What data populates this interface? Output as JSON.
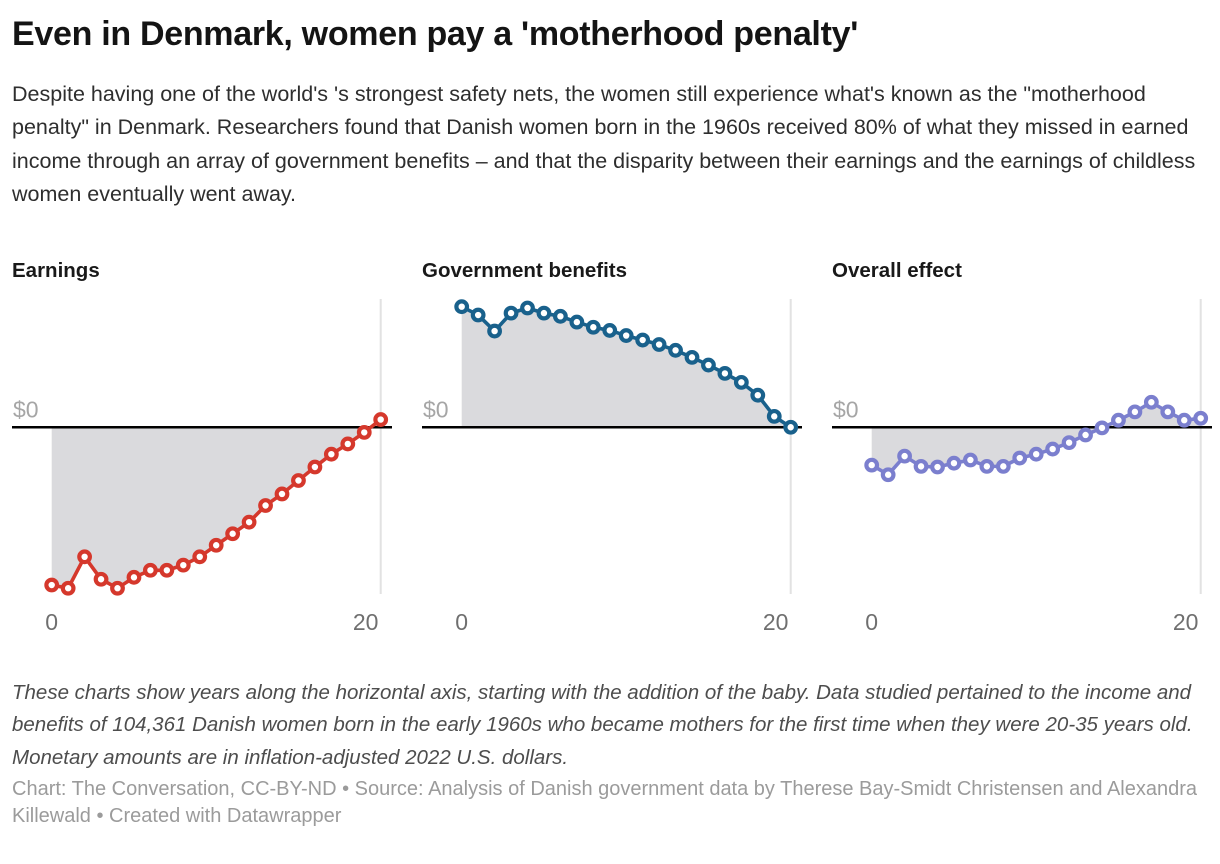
{
  "header": {
    "title": "Even in Denmark, women pay a 'motherhood penalty'",
    "description": "Despite having one of the world's 's strongest safety nets, the women still experience what's known as the \"motherhood penalty\" in Denmark. Researchers found that Danish women born in the 1960s received 80% of what they missed in earned income through an array of government benefits – and that the disparity between their earnings and the earnings of childless women eventually went away."
  },
  "axis": {
    "zero_label": "$0",
    "x_tick_labels": [
      "0",
      "20"
    ]
  },
  "colors": {
    "earnings_line": "#d5382c",
    "benefits_line": "#19618c",
    "overall_line": "#7b7fce",
    "area_fill": "#dadadd",
    "zero_axis": "#000000",
    "gridline": "#e2e2e2",
    "zero_label_text": "#a6a6a6",
    "tick_text": "#6f6f6f"
  },
  "chart_data": [
    {
      "type": "line",
      "title": "Earnings",
      "color": "#d5382c",
      "marker": "open-circle",
      "area_to_baseline": true,
      "xlabel": "years since addition of the baby",
      "ylabel": "inflation-adjusted 2022 U.S. dollars (only $0 labeled)",
      "ylim": [
        -13000,
        10000
      ],
      "x": [
        0,
        1,
        2,
        3,
        4,
        5,
        6,
        7,
        8,
        9,
        10,
        11,
        12,
        13,
        14,
        15,
        16,
        17,
        18,
        19,
        20
      ],
      "values": [
        -12300,
        -12550,
        -10100,
        -11850,
        -12550,
        -11700,
        -11150,
        -11150,
        -10750,
        -10100,
        -9200,
        -8300,
        -7400,
        -6100,
        -5200,
        -4150,
        -3100,
        -2100,
        -1300,
        -400,
        600
      ]
    },
    {
      "type": "line",
      "title": "Government benefits",
      "color": "#19618c",
      "marker": "open-circle",
      "area_to_baseline": true,
      "xlabel": "years since addition of the baby",
      "ylabel": "inflation-adjusted 2022 U.S. dollars (only $0 labeled)",
      "ylim": [
        -13000,
        10000
      ],
      "x": [
        0,
        1,
        2,
        3,
        4,
        5,
        6,
        7,
        8,
        9,
        10,
        11,
        12,
        13,
        14,
        15,
        16,
        17,
        18,
        19,
        20
      ],
      "values": [
        9400,
        8750,
        7500,
        8900,
        9300,
        8900,
        8650,
        8200,
        7800,
        7550,
        7150,
        6800,
        6450,
        6000,
        5450,
        4850,
        4200,
        3500,
        2500,
        850,
        0
      ]
    },
    {
      "type": "line",
      "title": "Overall effect",
      "color": "#7b7fce",
      "marker": "open-circle",
      "area_to_baseline": true,
      "xlabel": "years since addition of the baby",
      "ylabel": "inflation-adjusted 2022 U.S. dollars (only $0 labeled)",
      "ylim": [
        -13000,
        10000
      ],
      "x": [
        0,
        1,
        2,
        3,
        4,
        5,
        6,
        7,
        8,
        9,
        10,
        11,
        12,
        13,
        14,
        15,
        16,
        17,
        18,
        19,
        20
      ],
      "values": [
        -2950,
        -3700,
        -2250,
        -3050,
        -3100,
        -2800,
        -2550,
        -3050,
        -3050,
        -2400,
        -2100,
        -1700,
        -1200,
        -600,
        -50,
        550,
        1200,
        1950,
        1200,
        550,
        700
      ]
    }
  ],
  "footer": {
    "notes": "These charts show years along the horizontal axis, starting with the addition of the baby. Data studied pertained to the income and benefits of 104,361 Danish women born in the early 1960s who became mothers for the first time when they were 20-35 years old. Monetary amounts are in inflation-adjusted 2022 U.S. dollars.",
    "byline": "Chart: The Conversation, CC-BY-ND • Source: Analysis of Danish government data by Therese Bay-Smidt Christensen and Alexandra Killewald • Created with Datawrapper"
  }
}
